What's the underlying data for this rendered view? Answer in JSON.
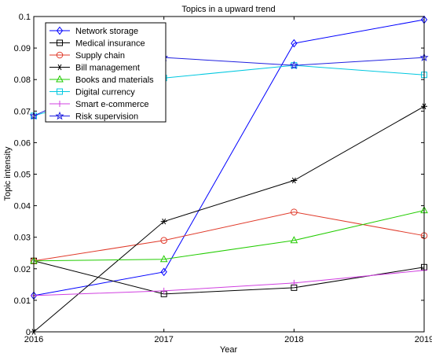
{
  "chart_data": {
    "type": "line",
    "title": "Topics in a upward trend",
    "xlabel": "Year",
    "ylabel": "Topic intensity",
    "x": [
      2016,
      2017,
      2018,
      2019
    ],
    "xlim": [
      2016,
      2019
    ],
    "ylim": [
      0,
      0.1
    ],
    "yticks": [
      0,
      0.01,
      0.02,
      0.03,
      0.04,
      0.05,
      0.06,
      0.07,
      0.08,
      0.09,
      0.1
    ],
    "ytick_labels": [
      "0",
      "0.01",
      "0.02",
      "0.03",
      "0.04",
      "0.05",
      "0.06",
      "0.07",
      "0.08",
      "0.09",
      "0.1"
    ],
    "xticks": [
      2016,
      2017,
      2018,
      2019
    ],
    "xtick_labels": [
      "2016",
      "2017",
      "2018",
      "2019"
    ],
    "grid": false,
    "legend_position": "top-left",
    "series": [
      {
        "name": "Network storage",
        "values": [
          0.0115,
          0.019,
          0.0915,
          0.099
        ],
        "color": "#0000ff",
        "marker": "diamond"
      },
      {
        "name": "Medical insurance",
        "values": [
          0.0225,
          0.012,
          0.014,
          0.0205
        ],
        "color": "#000000",
        "marker": "square"
      },
      {
        "name": "Supply chain",
        "values": [
          0.0225,
          0.029,
          0.038,
          0.0305
        ],
        "color": "#e03a2a",
        "marker": "circle"
      },
      {
        "name": "Bill management",
        "values": [
          0.0,
          0.035,
          0.048,
          0.0715
        ],
        "color": "#000000",
        "marker": "star6"
      },
      {
        "name": "Books and materials",
        "values": [
          0.0225,
          0.023,
          0.029,
          0.0385
        ],
        "color": "#22cc00",
        "marker": "triangle"
      },
      {
        "name": "Digital currency",
        "values": [
          0.0685,
          0.0805,
          0.0845,
          0.0815
        ],
        "color": "#00c8e0",
        "marker": "square"
      },
      {
        "name": "Smart e-commerce",
        "values": [
          0.0115,
          0.013,
          0.0155,
          0.0195
        ],
        "color": "#d040e0",
        "marker": "plus"
      },
      {
        "name": "Risk supervision",
        "values": [
          0.0685,
          0.087,
          0.0845,
          0.087
        ],
        "color": "#2020e0",
        "marker": "pentagram"
      }
    ]
  }
}
